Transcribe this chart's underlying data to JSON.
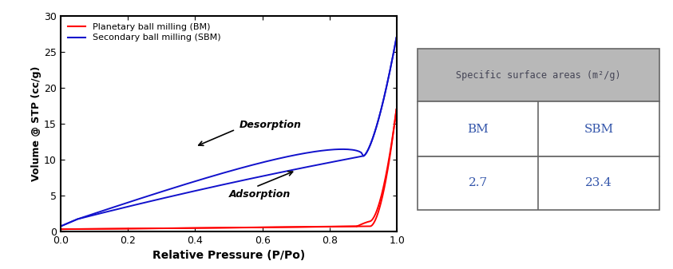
{
  "xlabel": "Relative Pressure (P/Po)",
  "ylabel": "Volume @ STP (cc/g)",
  "xlim": [
    0.0,
    1.0
  ],
  "ylim": [
    0,
    30
  ],
  "xticks": [
    0.0,
    0.2,
    0.4,
    0.6,
    0.8,
    1.0
  ],
  "yticks": [
    0,
    5,
    10,
    15,
    20,
    25,
    30
  ],
  "legend_bm": "Planetary ball milling (BM)",
  "legend_sbm": "Secondary ball milling (SBM)",
  "bm_color": "#ff0000",
  "sbm_color": "#1111cc",
  "table_header": "Specific surface areas (m²/g)",
  "table_col1": "BM",
  "table_col2": "SBM",
  "table_val1": "2.7",
  "table_val2": "23.4",
  "table_header_bg": "#b8b8b8",
  "table_text_color": "#3355aa",
  "table_border_color": "#666666",
  "desorption_label": "Desorption",
  "adsorption_label": "Adsorption"
}
